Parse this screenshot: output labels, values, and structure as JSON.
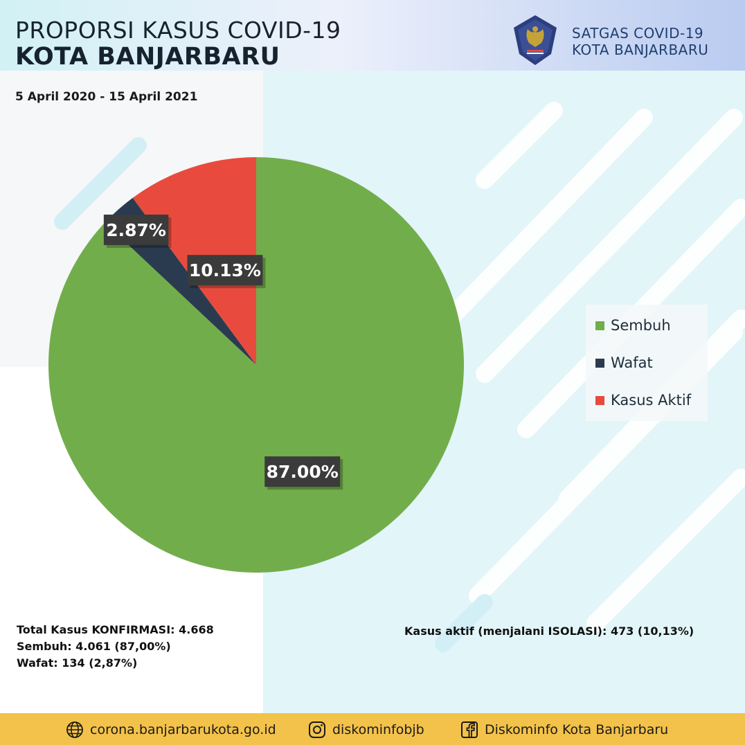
{
  "header": {
    "title_line1": "PROPORSI KASUS COVID-19",
    "title_line2": "KOTA BANJARBARU",
    "period": "5 April 2020 - 15 April 2021",
    "org_line1": "SATGAS COVID-19",
    "org_line2": "KOTA BANJARBARU",
    "emblem_icon": "garuda-emblem-icon"
  },
  "chart_data": {
    "type": "pie",
    "title": "",
    "categories": [
      "Sembuh",
      "Wafat",
      "Kasus Aktif"
    ],
    "values": [
      87.0,
      2.87,
      10.13
    ],
    "labels": [
      "87.00%",
      "2.87%",
      "10.13%"
    ],
    "colors": [
      "#72ad4b",
      "#2a3b4f",
      "#e84b3d"
    ],
    "legend_position": "right"
  },
  "legend": {
    "items": [
      {
        "label": "Sembuh",
        "color": "#72ad4b"
      },
      {
        "label": "Wafat",
        "color": "#2a3b4f"
      },
      {
        "label": "Kasus Aktif",
        "color": "#e84b3d"
      }
    ]
  },
  "stats": {
    "total": "Total Kasus KONFIRMASI: 4.668",
    "sembuh": "Sembuh: 4.061 (87,00%)",
    "wafat": "Wafat: 134 (2,87%)",
    "aktif": "Kasus aktif (menjalani ISOLASI): 473 (10,13%)"
  },
  "footer": {
    "website": "corona.banjarbarukota.go.id",
    "instagram": "diskominfobjb",
    "facebook": "Diskominfo Kota Banjarbaru",
    "icons": [
      "globe-icon",
      "instagram-icon",
      "facebook-icon"
    ],
    "background_color": "#f3c24a"
  }
}
